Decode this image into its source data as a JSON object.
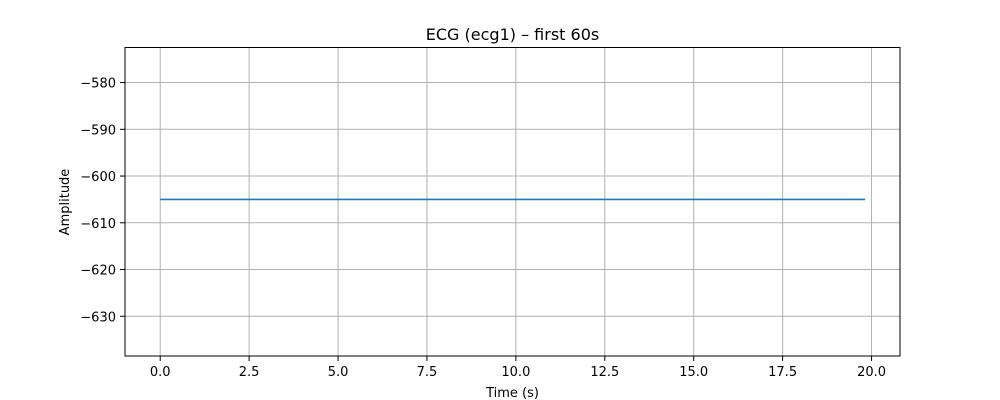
{
  "chart_data": {
    "type": "line",
    "title": "ECG (ecg1) – first 60s",
    "xlabel": "Time (s)",
    "ylabel": "Amplitude",
    "xlim": [
      -0.99,
      20.8
    ],
    "ylim": [
      -638.5,
      -572.5
    ],
    "xticks": [
      0.0,
      2.5,
      5.0,
      7.5,
      10.0,
      12.5,
      15.0,
      17.5,
      20.0
    ],
    "xtick_labels": [
      "0.0",
      "2.5",
      "5.0",
      "7.5",
      "10.0",
      "12.5",
      "15.0",
      "17.5",
      "20.0"
    ],
    "yticks": [
      -580,
      -590,
      -600,
      -610,
      -620,
      -630
    ],
    "ytick_labels": [
      "−580",
      "−590",
      "−600",
      "−610",
      "−620",
      "−630"
    ],
    "grid": true,
    "series": [
      {
        "color": "#1f77b4",
        "x": [
          0.0,
          19.82
        ],
        "y": [
          -605,
          -605
        ]
      }
    ]
  }
}
